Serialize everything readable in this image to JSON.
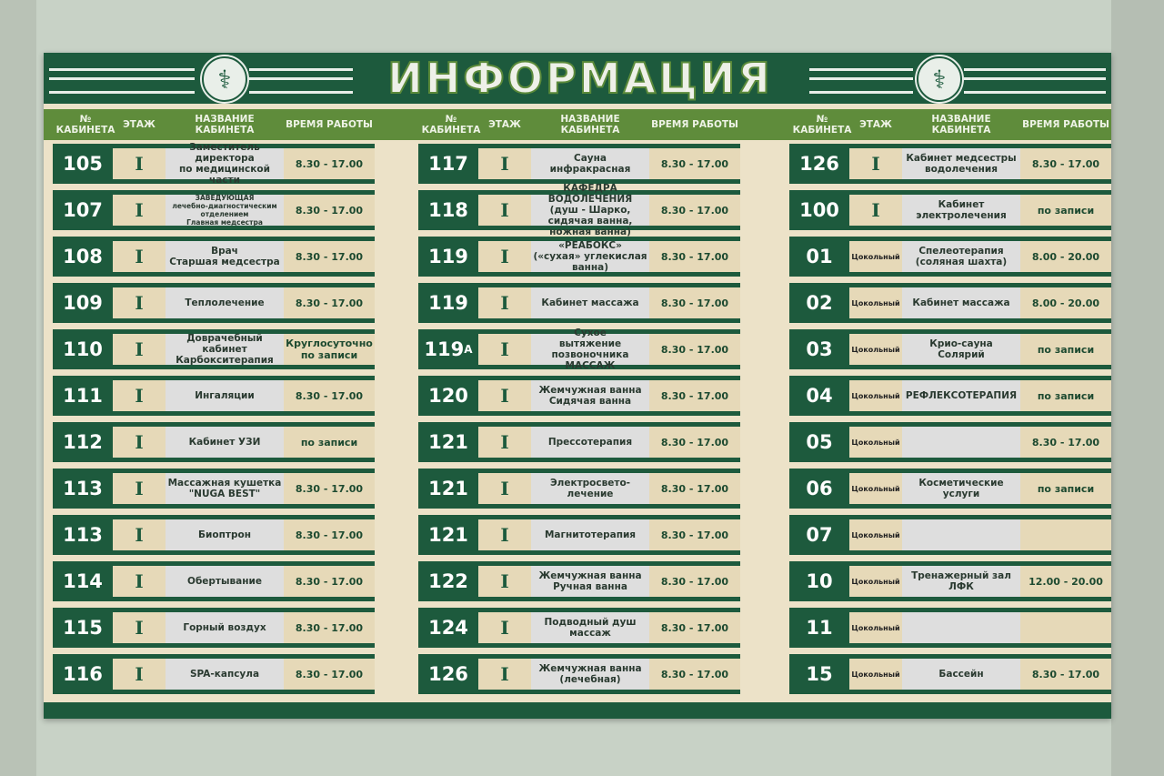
{
  "board": {
    "title": "ИНФОРМАЦИЯ",
    "emblem_icon": "bowl-of-hygieia-icon",
    "colors": {
      "dark_green": "#1d5a3d",
      "header_green": "#5f8c3b",
      "beige": "#e6d9b8",
      "name_panel": "#dedede"
    },
    "column_headers": {
      "number": "№\nКАБИНЕТА",
      "floor": "ЭТАЖ",
      "name": "НАЗВАНИЕ КАБИНЕТА",
      "hours": "ВРЕМЯ РАБОТЫ"
    },
    "columns": [
      [
        {
          "num": "105",
          "floor": "I",
          "name": "Заместитель директора\nпо медицинской части",
          "time": "8.30 - 17.00"
        },
        {
          "num": "107",
          "floor": "I",
          "name": "ЗАВЕДУЮЩАЯ\nлечебно-диагностическим\nотделением\nГлавная медсестра",
          "time": "8.30 - 17.00"
        },
        {
          "num": "108",
          "floor": "I",
          "name": "Врач\nСтаршая медсестра",
          "time": "8.30 - 17.00"
        },
        {
          "num": "109",
          "floor": "I",
          "name": "Теплолечение",
          "time": "8.30 - 17.00"
        },
        {
          "num": "110",
          "floor": "I",
          "name": "Доврачебный кабинет\nКарбокситерапия",
          "time": "Круглосуточно\nпо записи"
        },
        {
          "num": "111",
          "floor": "I",
          "name": "Ингаляции",
          "time": "8.30 - 17.00"
        },
        {
          "num": "112",
          "floor": "I",
          "name": "Кабинет УЗИ",
          "time": "по записи"
        },
        {
          "num": "113",
          "floor": "I",
          "name": "Массажная кушетка\n\"NUGA BEST\"",
          "time": "8.30 - 17.00"
        },
        {
          "num": "113",
          "floor": "I",
          "name": "Биоптрон",
          "time": "8.30 - 17.00"
        },
        {
          "num": "114",
          "floor": "I",
          "name": "Обертывание",
          "time": "8.30 - 17.00"
        },
        {
          "num": "115",
          "floor": "I",
          "name": "Горный воздух",
          "time": "8.30 - 17.00"
        },
        {
          "num": "116",
          "floor": "I",
          "name": "SPA-капсула",
          "time": "8.30 - 17.00"
        }
      ],
      [
        {
          "num": "117",
          "floor": "I",
          "name": "Сауна\nинфракрасная",
          "time": "8.30 - 17.00"
        },
        {
          "num": "118",
          "floor": "I",
          "name": "КАФЕДРА ВОДОЛЕЧЕНИЯ\n(душ - Шарко, сидячая ванна,\nножная ванна)",
          "time": "8.30 - 17.00"
        },
        {
          "num": "119",
          "floor": "I",
          "name": "«РЕАБОКС»\n(«сухая» углекислая ванна)",
          "time": "8.30 - 17.00"
        },
        {
          "num": "119",
          "floor": "I",
          "name": "Кабинет массажа",
          "time": "8.30 - 17.00"
        },
        {
          "num": "119",
          "sup": "А",
          "floor": "I",
          "name": "Сухое\nвытяжение позвоночника\nМАССАЖ",
          "time": "8.30 - 17.00"
        },
        {
          "num": "120",
          "floor": "I",
          "name": "Жемчужная ванна\nСидячая ванна",
          "time": "8.30 - 17.00"
        },
        {
          "num": "121",
          "floor": "I",
          "name": "Прессотерапия",
          "time": "8.30 - 17.00"
        },
        {
          "num": "121",
          "floor": "I",
          "name": "Электросвето-\nлечение",
          "time": "8.30 - 17.00"
        },
        {
          "num": "121",
          "floor": "I",
          "name": "Магнитотерапия",
          "time": "8.30 - 17.00"
        },
        {
          "num": "122",
          "floor": "I",
          "name": "Жемчужная ванна\nРучная ванна",
          "time": "8.30 - 17.00"
        },
        {
          "num": "124",
          "floor": "I",
          "name": "Подводный душ\nмассаж",
          "time": "8.30 - 17.00"
        },
        {
          "num": "126",
          "floor": "I",
          "name": "Жемчужная ванна\n(лечебная)",
          "time": "8.30 - 17.00"
        }
      ],
      [
        {
          "num": "126",
          "floor": "I",
          "name": "Кабинет медсестры\nводолечения",
          "time": "8.30 - 17.00"
        },
        {
          "num": "100",
          "floor": "I",
          "name": "Кабинет\nэлектролечения",
          "time": "по записи"
        },
        {
          "num": "01",
          "floor": "Цокольный",
          "name": "Спелеотерапия\n(соляная шахта)",
          "time": "8.00 - 20.00"
        },
        {
          "num": "02",
          "floor": "Цокольный",
          "name": "Кабинет массажа",
          "time": "8.00 - 20.00"
        },
        {
          "num": "03",
          "floor": "Цокольный",
          "name": "Крио-сауна\nСолярий",
          "time": "по записи"
        },
        {
          "num": "04",
          "floor": "Цокольный",
          "name": "РЕФЛЕКСОТЕРАПИЯ",
          "time": "по записи"
        },
        {
          "num": "05",
          "floor": "Цокольный",
          "name": "",
          "time": "8.30 - 17.00"
        },
        {
          "num": "06",
          "floor": "Цокольный",
          "name": "Косметические\nуслуги",
          "time": "по записи"
        },
        {
          "num": "07",
          "floor": "Цокольный",
          "name": "",
          "time": ""
        },
        {
          "num": "10",
          "floor": "Цокольный",
          "name": "Тренажерный зал\nЛФК",
          "time": "12.00 - 20.00"
        },
        {
          "num": "11",
          "floor": "Цокольный",
          "name": "",
          "time": ""
        },
        {
          "num": "15",
          "floor": "Цокольный",
          "name": "Бассейн",
          "time": "8.30 - 17.00"
        }
      ]
    ]
  }
}
